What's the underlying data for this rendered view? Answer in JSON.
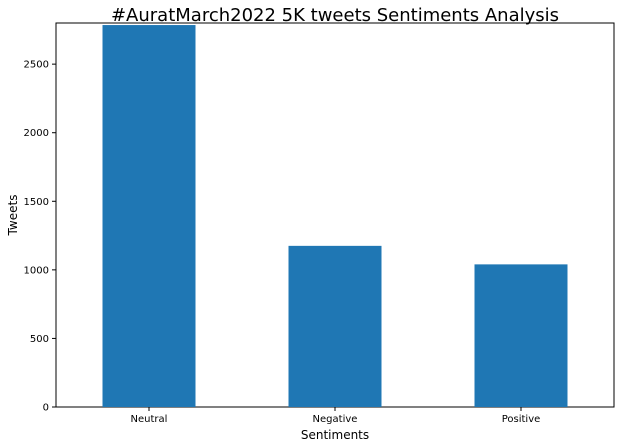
{
  "chart_data": {
    "type": "bar",
    "title": "#AuratMarch2022 5K tweets Sentiments Analysis",
    "xlabel": "Sentiments",
    "ylabel": "Tweets",
    "categories": [
      "Neutral",
      "Negative",
      "Positive"
    ],
    "values": [
      2785,
      1175,
      1040
    ],
    "ylim": [
      0,
      2800
    ],
    "yticks": [
      0,
      500,
      1000,
      1500,
      2000,
      2500
    ],
    "grid": false,
    "bar_color": "#1f77b4"
  }
}
